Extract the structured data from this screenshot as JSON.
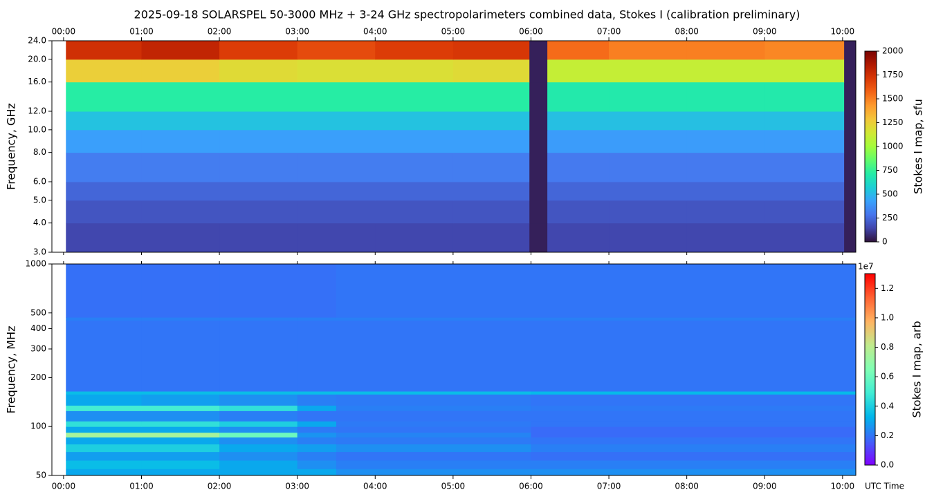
{
  "chart_data": [
    {
      "type": "heatmap",
      "title": "2025-09-18  SOLARSPEL  50-3000 MHz  +  3-24 GHz  spectropolarimeters combined data,  Stokes I  (calibration preliminary)",
      "ylabel": "Frequency, GHz",
      "colorbar_label": "Stokes I map, sfu",
      "xtick_position": "top",
      "xlim": [
        -0.15,
        10.17
      ],
      "xticks": [
        {
          "value": 0,
          "label": "00:00"
        },
        {
          "value": 1,
          "label": "01:00"
        },
        {
          "value": 2,
          "label": "02:00"
        },
        {
          "value": 3,
          "label": "03:00"
        },
        {
          "value": 4,
          "label": "04:00"
        },
        {
          "value": 5,
          "label": "05:00"
        },
        {
          "value": 6,
          "label": "06:00"
        },
        {
          "value": 7,
          "label": "07:00"
        },
        {
          "value": 8,
          "label": "08:00"
        },
        {
          "value": 9,
          "label": "09:00"
        },
        {
          "value": 10,
          "label": "10:00"
        }
      ],
      "ylim": [
        3,
        24
      ],
      "yscale": "log",
      "yticks": [
        {
          "value": 3,
          "label": "3.0"
        },
        {
          "value": 4,
          "label": "4.0"
        },
        {
          "value": 5,
          "label": "5.0"
        },
        {
          "value": 6,
          "label": "6.0"
        },
        {
          "value": 8,
          "label": "8.0"
        },
        {
          "value": 10,
          "label": "10.0"
        },
        {
          "value": 12,
          "label": "12.0"
        },
        {
          "value": 16,
          "label": "16.0"
        },
        {
          "value": 20,
          "label": "20.0"
        },
        {
          "value": 24,
          "label": "24.0"
        }
      ],
      "x_edges": [
        0.03,
        1,
        2,
        3,
        4,
        5,
        5.98,
        6.21,
        7,
        8,
        9,
        10.02,
        10.17
      ],
      "y_edges": [
        3,
        4,
        5,
        6,
        8,
        10,
        12,
        16,
        20,
        24
      ],
      "z": [
        [
          150,
          150,
          150,
          150,
          150,
          150,
          40,
          150,
          150,
          150,
          150,
          40
        ],
        [
          190,
          190,
          190,
          190,
          190,
          190,
          40,
          190,
          190,
          190,
          190,
          40
        ],
        [
          240,
          240,
          240,
          240,
          240,
          240,
          40,
          240,
          240,
          240,
          240,
          40
        ],
        [
          310,
          310,
          310,
          310,
          310,
          310,
          40,
          300,
          300,
          300,
          300,
          40
        ],
        [
          420,
          420,
          420,
          420,
          420,
          420,
          40,
          410,
          410,
          410,
          410,
          40
        ],
        [
          530,
          530,
          530,
          530,
          530,
          530,
          40,
          520,
          520,
          520,
          520,
          40
        ],
        [
          720,
          720,
          720,
          720,
          720,
          720,
          40,
          700,
          700,
          700,
          700,
          40
        ],
        [
          1250,
          1250,
          1200,
          1180,
          1180,
          1200,
          40,
          1100,
          1100,
          1100,
          1100,
          40
        ],
        [
          1750,
          1800,
          1700,
          1650,
          1700,
          1720,
          40,
          1550,
          1500,
          1500,
          1480,
          40
        ]
      ],
      "clim": [
        0,
        2000
      ],
      "cticks": [
        0,
        250,
        500,
        750,
        1000,
        1250,
        1500,
        1750,
        2000
      ],
      "colormap": [
        "#30123b",
        "#4145ab",
        "#4675ed",
        "#39a2fc",
        "#1bcfd4",
        "#24eca6",
        "#61fc6c",
        "#a4fc3b",
        "#d1e834",
        "#f3c63a",
        "#fe9b2d",
        "#f36315",
        "#d93806",
        "#b11901",
        "#7a0403"
      ]
    },
    {
      "type": "heatmap",
      "ylabel": "Frequency, MHz",
      "xlabel": "UTC Time",
      "colorbar_label": "Stokes I map, arb",
      "colorbar_offset": "1e7",
      "xtick_position": "bottom",
      "xlim": [
        -0.15,
        10.17
      ],
      "xticks": [
        {
          "value": 0,
          "label": "00:00"
        },
        {
          "value": 1,
          "label": "01:00"
        },
        {
          "value": 2,
          "label": "02:00"
        },
        {
          "value": 3,
          "label": "03:00"
        },
        {
          "value": 4,
          "label": "04:00"
        },
        {
          "value": 5,
          "label": "05:00"
        },
        {
          "value": 6,
          "label": "06:00"
        },
        {
          "value": 7,
          "label": "07:00"
        },
        {
          "value": 8,
          "label": "08:00"
        },
        {
          "value": 9,
          "label": "09:00"
        },
        {
          "value": 10,
          "label": "10:00"
        }
      ],
      "ylim": [
        50,
        1000
      ],
      "yscale": "log",
      "yticks": [
        50,
        100,
        200,
        300,
        400,
        500,
        1000
      ],
      "x_edges": [
        0.03,
        1,
        2,
        3,
        3.5,
        6,
        10.17
      ],
      "y_edges": [
        50,
        55,
        62,
        70,
        78,
        86,
        92,
        100,
        108,
        125,
        135,
        158,
        165,
        450,
        470,
        1000
      ],
      "z": [
        [
          0.3,
          0.3,
          0.3,
          0.3,
          0.25,
          0.25
        ],
        [
          0.35,
          0.35,
          0.3,
          0.25,
          0.22,
          0.22
        ],
        [
          0.28,
          0.28,
          0.25,
          0.22,
          0.2,
          0.19
        ],
        [
          0.4,
          0.4,
          0.3,
          0.28,
          0.25,
          0.22
        ],
        [
          0.3,
          0.3,
          0.25,
          0.22,
          0.21,
          0.2
        ],
        [
          0.75,
          0.75,
          0.6,
          0.26,
          0.23,
          0.18
        ],
        [
          0.3,
          0.3,
          0.25,
          0.21,
          0.2,
          0.18
        ],
        [
          0.45,
          0.45,
          0.4,
          0.3,
          0.21,
          0.2
        ],
        [
          0.25,
          0.25,
          0.22,
          0.2,
          0.2,
          0.2
        ],
        [
          0.5,
          0.5,
          0.45,
          0.3,
          0.22,
          0.21
        ],
        [
          0.3,
          0.28,
          0.25,
          0.22,
          0.21,
          0.2
        ],
        [
          0.35,
          0.35,
          0.35,
          0.35,
          0.35,
          0.34
        ],
        [
          0.2,
          0.2,
          0.2,
          0.2,
          0.2,
          0.2
        ],
        [
          0.22,
          0.22,
          0.22,
          0.22,
          0.22,
          0.22
        ],
        [
          0.19,
          0.19,
          0.19,
          0.19,
          0.2,
          0.2
        ]
      ],
      "clim": [
        0,
        1.3
      ],
      "cticks": [
        {
          "value": 0,
          "label": "0.0"
        },
        {
          "value": 0.2,
          "label": "0.2"
        },
        {
          "value": 0.4,
          "label": "0.4"
        },
        {
          "value": 0.6,
          "label": "0.6"
        },
        {
          "value": 0.8,
          "label": "0.8"
        },
        {
          "value": 1.0,
          "label": "1.0"
        },
        {
          "value": 1.2,
          "label": "1.2"
        }
      ],
      "colormap": [
        "#8000ff",
        "#4062fa",
        "#00b5eb",
        "#40ecd4",
        "#80ffb4",
        "#c0eb8d",
        "#ffb462",
        "#ff6232",
        "#ff0000"
      ]
    }
  ]
}
